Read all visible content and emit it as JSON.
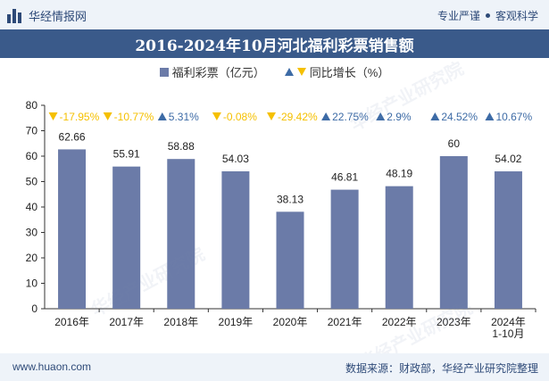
{
  "header": {
    "brand": "华经情报网",
    "tag_left": "专业严谨",
    "tag_right": "客观科学"
  },
  "title": "2016-2024年10月河北福利彩票销售额",
  "legend": {
    "bar_label": "福利彩票（亿元）",
    "growth_label": "同比增长（%）"
  },
  "watermark": "华经产业研究院",
  "footer": {
    "website": "www.huaon.com",
    "source": "数据来源：财政部，华经产业研究院整理"
  },
  "colors": {
    "bar": "#6b7ba8",
    "up": "#3d6ba6",
    "down": "#f5c000",
    "header_band": "#3a5a8a"
  },
  "chart_data": {
    "type": "bar",
    "categories": [
      "2016年",
      "2017年",
      "2018年",
      "2019年",
      "2020年",
      "2021年",
      "2022年",
      "2023年",
      "2024年\n1-10月"
    ],
    "values": [
      62.66,
      55.91,
      58.88,
      54.03,
      38.13,
      46.81,
      48.19,
      60,
      54.02
    ],
    "value_labels": [
      "62.66",
      "55.91",
      "58.88",
      "54.03",
      "38.13",
      "46.81",
      "48.19",
      "60",
      "54.02"
    ],
    "growth": [
      -17.95,
      -10.77,
      5.31,
      -0.08,
      -29.42,
      22.75,
      2.9,
      24.52,
      10.67
    ],
    "growth_labels": [
      "-17.95%",
      "-10.77%",
      "5.31%",
      "-0.08%",
      "-29.42%",
      "22.75%",
      "2.9%",
      "24.52%",
      "10.67%"
    ],
    "ylim": [
      0,
      80
    ],
    "yticks": [
      0,
      10,
      20,
      30,
      40,
      50,
      60,
      70,
      80
    ],
    "grid": false
  }
}
